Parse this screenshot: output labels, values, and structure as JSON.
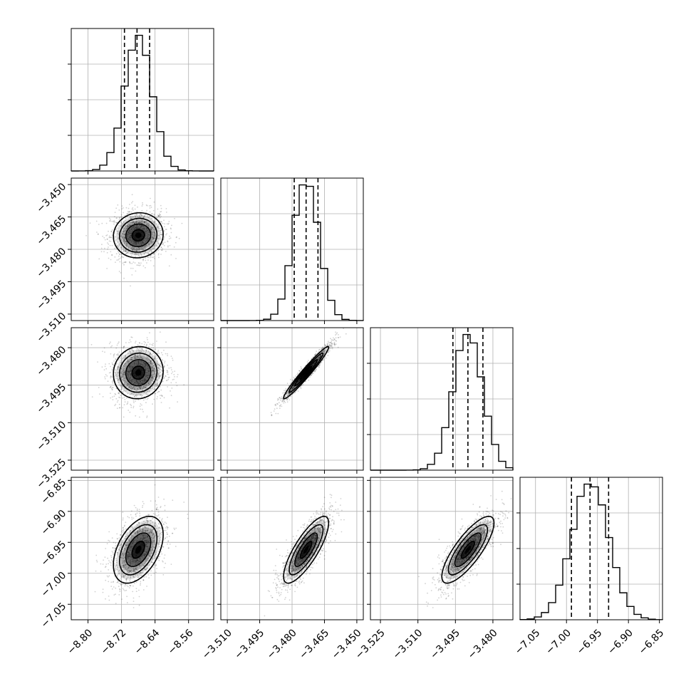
{
  "chart_data": {
    "type": "corner",
    "title": "",
    "params": [
      {
        "mean": -8.68,
        "sd": 0.033,
        "range": [
          -8.84,
          -8.5
        ],
        "ticks": [
          -8.8,
          -8.72,
          -8.64,
          -8.56
        ],
        "tick_labels": [
          "−8.80",
          "−8.72",
          "−8.64",
          "−8.56"
        ],
        "quantiles": [
          -8.713,
          -8.683,
          -8.653
        ]
      },
      {
        "mean": -3.4735,
        "sd": 0.0058,
        "range": [
          -3.513,
          -3.447
        ],
        "ticks": [
          -3.51,
          -3.495,
          -3.48,
          -3.465,
          -3.45
        ],
        "tick_labels": [
          "−3.510",
          "−3.495",
          "−3.480",
          "−3.465",
          "−3.450"
        ],
        "quantiles": [
          -3.479,
          -3.4735,
          -3.468
        ]
      },
      {
        "mean": -3.49,
        "sd": 0.0058,
        "range": [
          -3.529,
          -3.472
        ],
        "ticks": [
          -3.525,
          -3.51,
          -3.495,
          -3.48
        ],
        "tick_labels": [
          "−3.525",
          "−3.510",
          "−3.495",
          "−3.480"
        ],
        "quantiles": [
          -3.496,
          -3.49,
          -3.484
        ]
      },
      {
        "mean": -6.962,
        "sd": 0.03,
        "range": [
          -7.075,
          -6.845
        ],
        "ticks": [
          -7.05,
          -7.0,
          -6.95,
          -6.9,
          -6.85
        ],
        "tick_labels": [
          "−7.05",
          "−7.00",
          "−6.95",
          "−6.90",
          "−6.85"
        ],
        "quantiles": [
          -6.992,
          -6.962,
          -6.932
        ]
      }
    ],
    "correlations": [
      [
        1,
        0.05,
        0.05,
        0.45
      ],
      [
        0.05,
        1,
        0.97,
        0.8
      ],
      [
        0.05,
        0.97,
        1,
        0.8
      ],
      [
        0.45,
        0.8,
        0.8,
        1
      ]
    ],
    "hist_bins": 20,
    "contour_levels": [
      0.5,
      1.0,
      1.5,
      2.0
    ],
    "grid": true,
    "marker_color": "#000000"
  }
}
